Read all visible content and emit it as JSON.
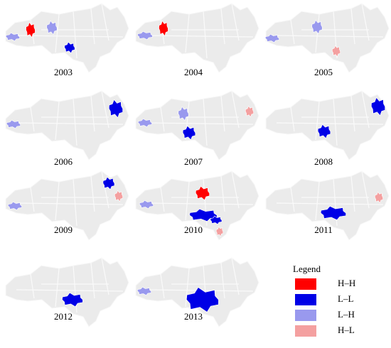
{
  "maps": [
    {
      "year": "2003"
    },
    {
      "year": "2004"
    },
    {
      "year": "2005"
    },
    {
      "year": "2006"
    },
    {
      "year": "2007"
    },
    {
      "year": "2008"
    },
    {
      "year": "2009"
    },
    {
      "year": "2010"
    },
    {
      "year": "2011"
    },
    {
      "year": "2012"
    },
    {
      "year": "2013"
    }
  ],
  "legend": {
    "title": "Legend",
    "items": [
      {
        "label": "H–H",
        "color": "#ff0000"
      },
      {
        "label": "L–L",
        "color": "#0000e6"
      },
      {
        "label": "L–H",
        "color": "#9999ee"
      },
      {
        "label": "H–L",
        "color": "#f4a0a0"
      }
    ]
  }
}
